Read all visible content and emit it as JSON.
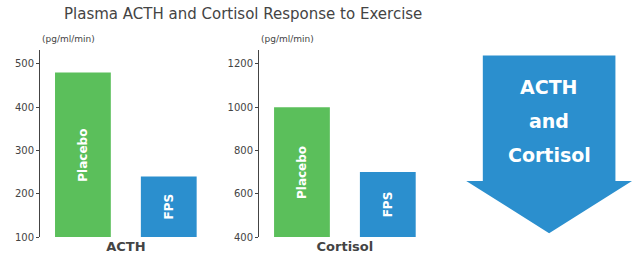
{
  "title": "Plasma ACTH and Cortisol Response to Exercise",
  "annotations": [
    "ACTH",
    "and",
    "Cortisol"
  ],
  "chart_data": [
    {
      "type": "bar",
      "xlabel": "ACTH",
      "ylabel": "(pg/ml/min)",
      "categories": [
        "Placebo",
        "FPS"
      ],
      "values": [
        480,
        240
      ],
      "colors": [
        "#5BBF5B",
        "#2b8fce"
      ],
      "ylim": [
        100,
        532
      ],
      "yticks": [
        100,
        200,
        300,
        400,
        500
      ],
      "grid": false
    },
    {
      "type": "bar",
      "xlabel": "Cortisol",
      "ylabel": "(pg/ml/min)",
      "categories": [
        "Placebo",
        "FPS"
      ],
      "values": [
        1000,
        700
      ],
      "colors": [
        "#5BBF5B",
        "#2b8fce"
      ],
      "ylim": [
        400,
        1264
      ],
      "yticks": [
        400,
        600,
        800,
        1000,
        1200
      ],
      "grid": false
    }
  ]
}
